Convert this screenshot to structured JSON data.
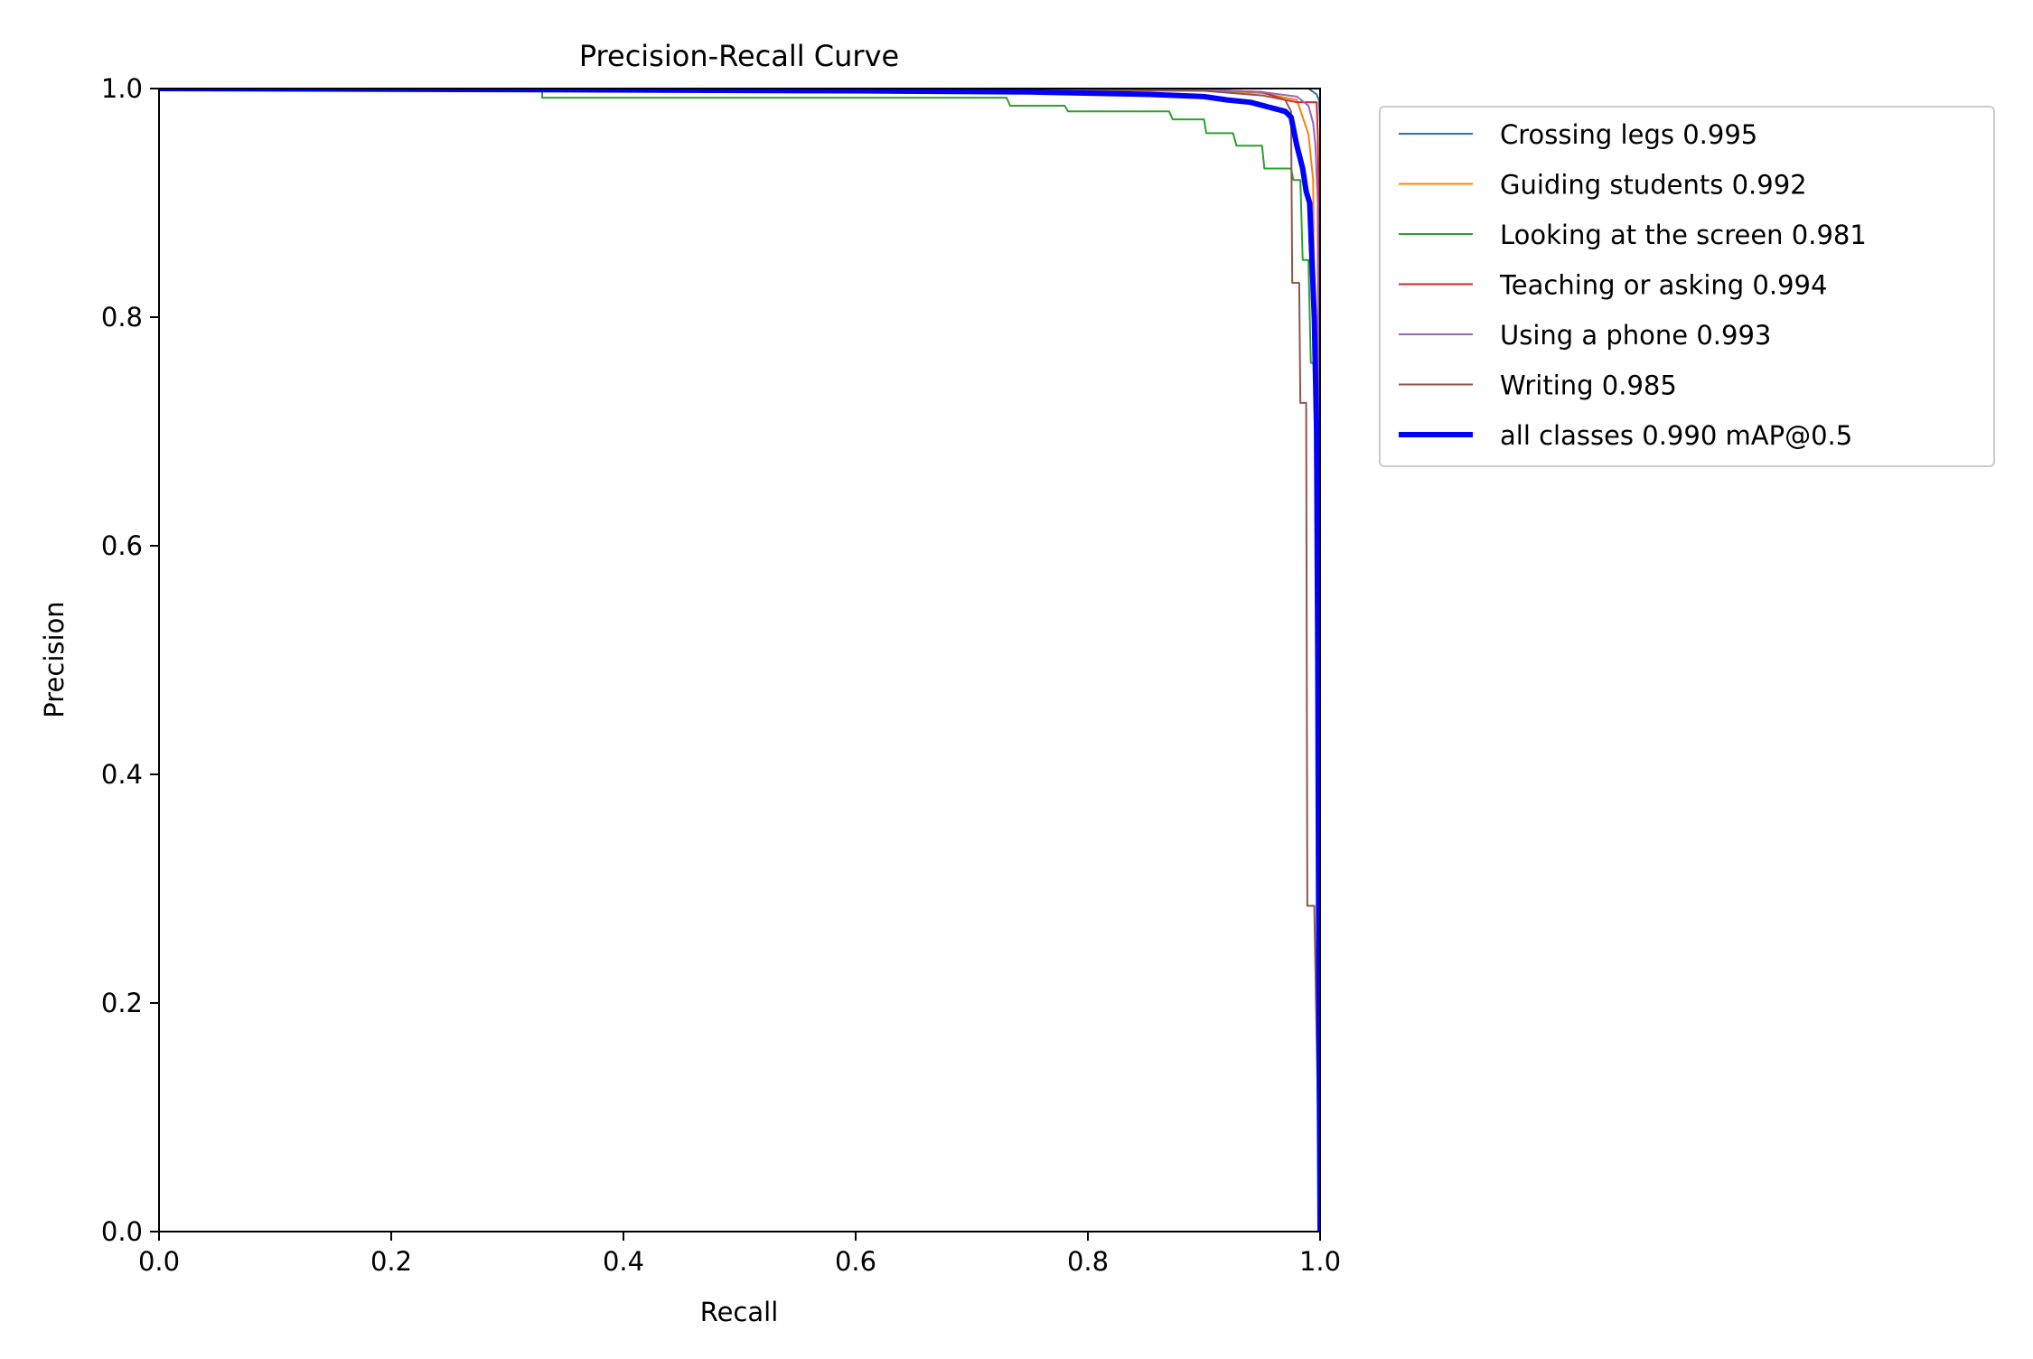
{
  "chart_data": {
    "type": "line",
    "title": "Precision-Recall Curve",
    "xlabel": "Recall",
    "ylabel": "Precision",
    "xlim": [
      0,
      1
    ],
    "ylim": [
      0,
      1
    ],
    "xticks": [
      "0.0",
      "0.2",
      "0.4",
      "0.6",
      "0.8",
      "1.0"
    ],
    "yticks": [
      "0.0",
      "0.2",
      "0.4",
      "0.6",
      "0.8",
      "1.0"
    ],
    "grid": false,
    "legend_position": "outside upper right",
    "series": [
      {
        "name": "Crossing legs 0.995",
        "color": "#1f77b4",
        "width": 2,
        "points": [
          [
            0,
            1
          ],
          [
            0.5,
            1
          ],
          [
            0.9,
            1
          ],
          [
            0.99,
            1
          ],
          [
            0.997,
            0.995
          ],
          [
            0.999,
            0.99
          ],
          [
            1.0,
            0.97
          ],
          [
            1.0,
            0
          ]
        ]
      },
      {
        "name": "Guiding students 0.992",
        "color": "#ff7f0e",
        "width": 2,
        "points": [
          [
            0,
            1
          ],
          [
            0.6,
            1
          ],
          [
            0.9,
            0.998
          ],
          [
            0.95,
            0.996
          ],
          [
            0.98,
            0.99
          ],
          [
            0.99,
            0.96
          ],
          [
            0.994,
            0.92
          ],
          [
            0.996,
            0.7
          ],
          [
            0.998,
            0.3
          ],
          [
            1.0,
            0
          ]
        ]
      },
      {
        "name": "Looking at the screen 0.981",
        "color": "#2ca02c",
        "width": 2,
        "points": [
          [
            0,
            1
          ],
          [
            0.33,
            1
          ],
          [
            0.33,
            0.992
          ],
          [
            0.73,
            0.992
          ],
          [
            0.733,
            0.985
          ],
          [
            0.78,
            0.985
          ],
          [
            0.783,
            0.98
          ],
          [
            0.87,
            0.98
          ],
          [
            0.873,
            0.973
          ],
          [
            0.9,
            0.973
          ],
          [
            0.902,
            0.961
          ],
          [
            0.925,
            0.961
          ],
          [
            0.928,
            0.95
          ],
          [
            0.95,
            0.95
          ],
          [
            0.952,
            0.93
          ],
          [
            0.975,
            0.93
          ],
          [
            0.977,
            0.92
          ],
          [
            0.983,
            0.92
          ],
          [
            0.985,
            0.85
          ],
          [
            0.99,
            0.85
          ],
          [
            0.992,
            0.76
          ],
          [
            0.995,
            0.76
          ],
          [
            0.997,
            0.5
          ],
          [
            1.0,
            0
          ]
        ]
      },
      {
        "name": "Teaching or asking 0.994",
        "color": "#d62728",
        "width": 2,
        "points": [
          [
            0,
            1
          ],
          [
            0.7,
            1
          ],
          [
            0.88,
            1
          ],
          [
            0.95,
            0.997
          ],
          [
            0.97,
            0.99
          ],
          [
            0.98,
            0.988
          ],
          [
            0.997,
            0.988
          ],
          [
            0.998,
            0.96
          ],
          [
            0.999,
            0.9
          ],
          [
            1.0,
            0
          ]
        ]
      },
      {
        "name": "Using a phone 0.993",
        "color": "#9467bd",
        "width": 2,
        "points": [
          [
            0,
            1
          ],
          [
            0.7,
            1
          ],
          [
            0.9,
            0.999
          ],
          [
            0.95,
            0.997
          ],
          [
            0.98,
            0.993
          ],
          [
            0.99,
            0.985
          ],
          [
            0.994,
            0.97
          ],
          [
            0.996,
            0.95
          ],
          [
            0.998,
            0.9
          ],
          [
            1.0,
            0
          ]
        ]
      },
      {
        "name": "Writing 0.985",
        "color": "#8c564b",
        "width": 2,
        "points": [
          [
            0,
            1
          ],
          [
            0.6,
            1
          ],
          [
            0.9,
            0.998
          ],
          [
            0.95,
            0.994
          ],
          [
            0.97,
            0.99
          ],
          [
            0.975,
            0.98
          ],
          [
            0.976,
            0.83
          ],
          [
            0.982,
            0.83
          ],
          [
            0.983,
            0.725
          ],
          [
            0.988,
            0.725
          ],
          [
            0.989,
            0.285
          ],
          [
            0.995,
            0.285
          ],
          [
            1.0,
            0
          ]
        ]
      },
      {
        "name": "all classes 0.990 mAP@0.5",
        "color": "#0000ff",
        "width": 6,
        "points": [
          [
            0,
            1
          ],
          [
            0.33,
            0.999
          ],
          [
            0.6,
            0.998
          ],
          [
            0.75,
            0.997
          ],
          [
            0.85,
            0.995
          ],
          [
            0.9,
            0.993
          ],
          [
            0.92,
            0.99
          ],
          [
            0.94,
            0.988
          ],
          [
            0.955,
            0.984
          ],
          [
            0.97,
            0.98
          ],
          [
            0.975,
            0.975
          ],
          [
            0.98,
            0.95
          ],
          [
            0.985,
            0.93
          ],
          [
            0.988,
            0.91
          ],
          [
            0.991,
            0.9
          ],
          [
            0.993,
            0.85
          ],
          [
            0.995,
            0.8
          ],
          [
            0.997,
            0.7
          ],
          [
            0.998,
            0.5
          ],
          [
            0.999,
            0.2
          ],
          [
            1.0,
            0
          ]
        ]
      }
    ]
  }
}
